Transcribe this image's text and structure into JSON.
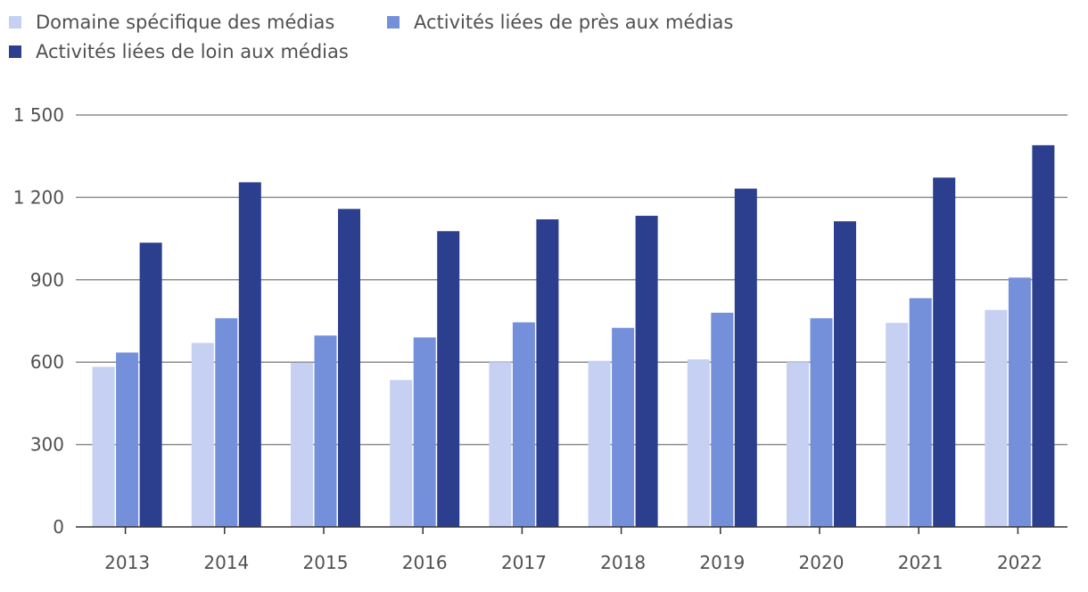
{
  "chart_data": {
    "type": "bar",
    "title": "",
    "xlabel": "",
    "ylabel": "",
    "ylim": [
      0,
      1500
    ],
    "yticks": [
      0,
      300,
      600,
      900,
      1200,
      1500
    ],
    "ytick_labels": [
      "0",
      "300",
      "600",
      "900",
      "1 200",
      "1 500"
    ],
    "categories": [
      "2013",
      "2014",
      "2015",
      "2016",
      "2017",
      "2018",
      "2019",
      "2020",
      "2021",
      "2022"
    ],
    "grid": true,
    "legend_position": "top-left",
    "series": [
      {
        "name": "Domaine spécifique des médias",
        "color": "#c5d0f2",
        "values": [
          583,
          670,
          598,
          535,
          600,
          605,
          610,
          600,
          743,
          790
        ]
      },
      {
        "name": "Activités liées de près aux médias",
        "color": "#7590db",
        "values": [
          635,
          760,
          697,
          690,
          745,
          725,
          780,
          760,
          833,
          908
        ]
      },
      {
        "name": "Activités liées de loin aux médias",
        "color": "#2b3f8e",
        "values": [
          1035,
          1255,
          1158,
          1077,
          1120,
          1133,
          1232,
          1113,
          1272,
          1390
        ]
      }
    ]
  }
}
